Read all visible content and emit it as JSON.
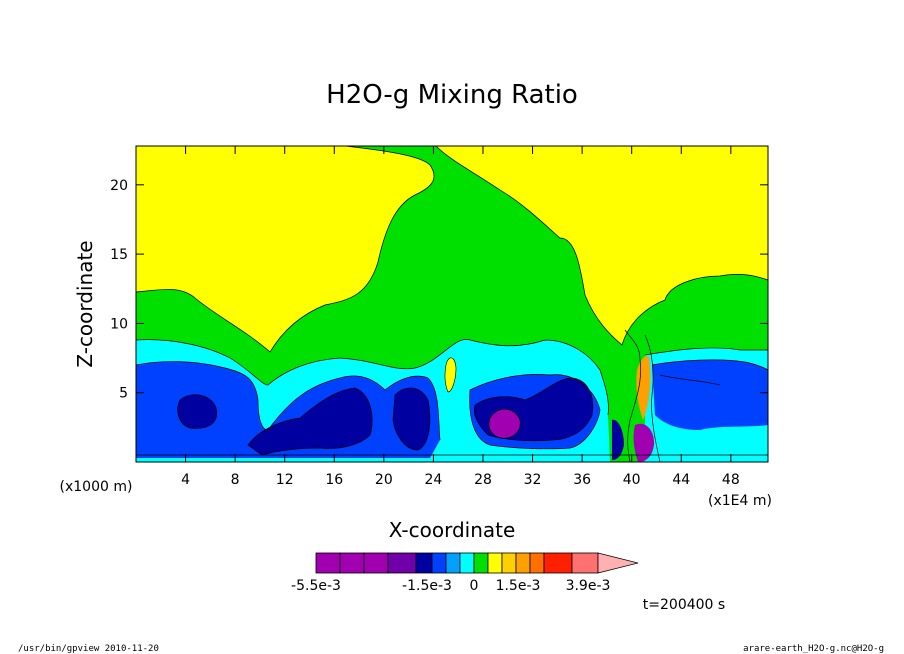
{
  "chart_data": {
    "type": "heatmap",
    "title": "H2O-g Mixing Ratio",
    "xlabel": "X-coordinate",
    "ylabel": "Z-coordinate",
    "x_unit_left": "(x1000 m)",
    "x_unit_right": "(x1E4 m)",
    "xlim": [
      0,
      51
    ],
    "ylim": [
      0,
      22.8
    ],
    "x_ticks": [
      "4",
      "8",
      "12",
      "16",
      "20",
      "24",
      "28",
      "32",
      "36",
      "40",
      "44",
      "48"
    ],
    "x_tick_values": [
      4,
      8,
      12,
      16,
      20,
      24,
      28,
      32,
      36,
      40,
      44,
      48
    ],
    "y_ticks": [
      "5",
      "10",
      "15",
      "20"
    ],
    "y_tick_values": [
      5,
      10,
      15,
      20
    ],
    "colorbar": {
      "colors": [
        "#a000b0",
        "#a000b0",
        "#a000b0",
        "#7000a8",
        "#0000a0",
        "#0040ff",
        "#00a0ff",
        "#00ffff",
        "#00e000",
        "#ffff00",
        "#ffd000",
        "#ffa000",
        "#ff7000",
        "#ff2000",
        "#ff7070",
        "#ffb0b0"
      ],
      "labels": [
        "-5.5e-3",
        "-1.5e-3",
        "0",
        "1.5e-3",
        "3.9e-3"
      ]
    },
    "time_label": "t=200400 s",
    "regions": [
      {
        "level": "yellow",
        "color": "#ffff00"
      },
      {
        "level": "green",
        "color": "#00e000"
      },
      {
        "level": "cyan",
        "color": "#00ffff"
      },
      {
        "level": "blue",
        "color": "#0040ff"
      },
      {
        "level": "navy",
        "color": "#0000a0"
      },
      {
        "level": "purple",
        "color": "#a000b0"
      },
      {
        "level": "orange",
        "color": "#ffa000"
      }
    ]
  },
  "footer": {
    "left": "/usr/bin/gpview   2010-11-20",
    "right": "arare-earth_H2O-g.nc@H2O-g"
  }
}
